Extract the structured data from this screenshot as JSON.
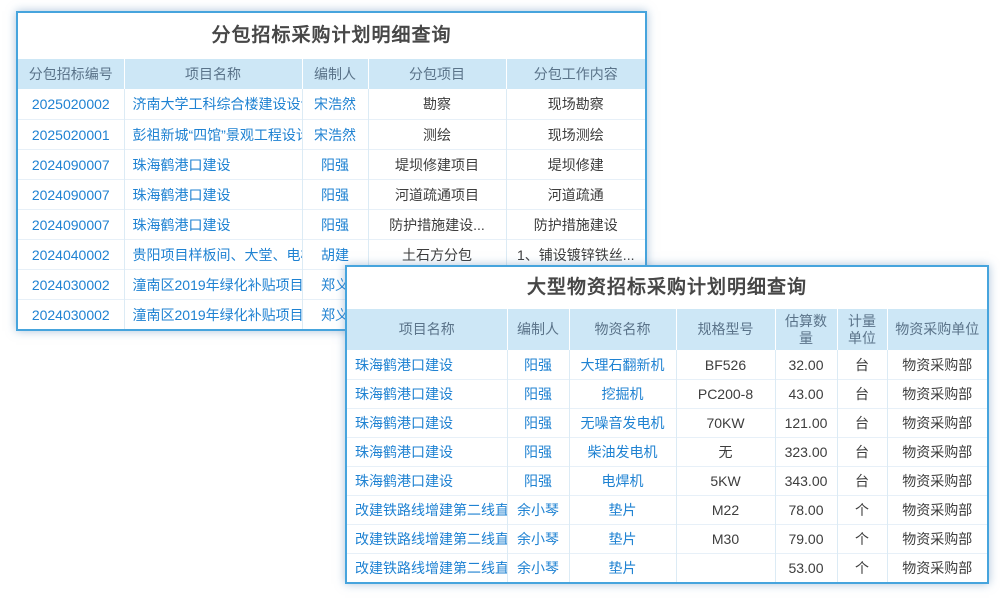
{
  "colors": {
    "panel_border": "#46a4dd",
    "header_bg": "#cde7f6",
    "header_text": "#5a7389",
    "link_text": "#1f82d2",
    "plain_text": "#3d3d3d",
    "title_text": "#474747"
  },
  "panel1": {
    "title": "分包招标采购计划明细查询",
    "columns": [
      "分包招标编号",
      "项目名称",
      "编制人",
      "分包项目",
      "分包工作内容"
    ],
    "rows": [
      {
        "id": "2025020002",
        "project": "济南大学工科综合楼建设设计",
        "preparer": "宋浩然",
        "sub_project": "勘察",
        "work": "现场勘察"
      },
      {
        "id": "2025020001",
        "project": "彭祖新城“四馆”景观工程设计",
        "preparer": "宋浩然",
        "sub_project": "测绘",
        "work": "现场测绘"
      },
      {
        "id": "2024090007",
        "project": "珠海鹤港口建设",
        "preparer": "阳强",
        "sub_project": "堤坝修建项目",
        "work": "堤坝修建"
      },
      {
        "id": "2024090007",
        "project": "珠海鹤港口建设",
        "preparer": "阳强",
        "sub_project": "河道疏通项目",
        "work": "河道疏通"
      },
      {
        "id": "2024090007",
        "project": "珠海鹤港口建设",
        "preparer": "阳强",
        "sub_project": "防护措施建设...",
        "work": "防护措施建设"
      },
      {
        "id": "2024040002",
        "project": "贵阳项目样板间、大堂、电梯",
        "preparer": "胡建",
        "sub_project": "土石方分包",
        "work": "1、铺设镀锌铁丝..."
      },
      {
        "id": "2024030002",
        "project": "潼南区2019年绿化补贴项目",
        "preparer": "郑义",
        "sub_project": "",
        "work": ""
      },
      {
        "id": "2024030002",
        "project": "潼南区2019年绿化补贴项目",
        "preparer": "郑义",
        "sub_project": "",
        "work": ""
      }
    ]
  },
  "panel2": {
    "title": "大型物资招标采购计划明细查询",
    "columns": [
      "项目名称",
      "编制人",
      "物资名称",
      "规格型号",
      "估算数量",
      "计量单位",
      "物资采购单位"
    ],
    "rows": [
      {
        "project": "珠海鹤港口建设",
        "preparer": "阳强",
        "material": "大理石翻新机",
        "spec": "BF526",
        "qty": "32.00",
        "unit": "台",
        "org": "物资采购部"
      },
      {
        "project": "珠海鹤港口建设",
        "preparer": "阳强",
        "material": "挖掘机",
        "spec": "PC200-8",
        "qty": "43.00",
        "unit": "台",
        "org": "物资采购部"
      },
      {
        "project": "珠海鹤港口建设",
        "preparer": "阳强",
        "material": "无噪音发电机",
        "spec": "70KW",
        "qty": "121.00",
        "unit": "台",
        "org": "物资采购部"
      },
      {
        "project": "珠海鹤港口建设",
        "preparer": "阳强",
        "material": "柴油发电机",
        "spec": "无",
        "qty": "323.00",
        "unit": "台",
        "org": "物资采购部"
      },
      {
        "project": "珠海鹤港口建设",
        "preparer": "阳强",
        "material": "电焊机",
        "spec": "5KW",
        "qty": "343.00",
        "unit": "台",
        "org": "物资采购部"
      },
      {
        "project": "改建铁路线增建第二线直通",
        "preparer": "余小琴",
        "material": "垫片",
        "spec": "M22",
        "qty": "78.00",
        "unit": "个",
        "org": "物资采购部"
      },
      {
        "project": "改建铁路线增建第二线直通",
        "preparer": "余小琴",
        "material": "垫片",
        "spec": "M30",
        "qty": "79.00",
        "unit": "个",
        "org": "物资采购部"
      },
      {
        "project": "改建铁路线增建第二线直通",
        "preparer": "余小琴",
        "material": "垫片",
        "spec": "",
        "qty": "53.00",
        "unit": "个",
        "org": "物资采购部"
      }
    ]
  }
}
